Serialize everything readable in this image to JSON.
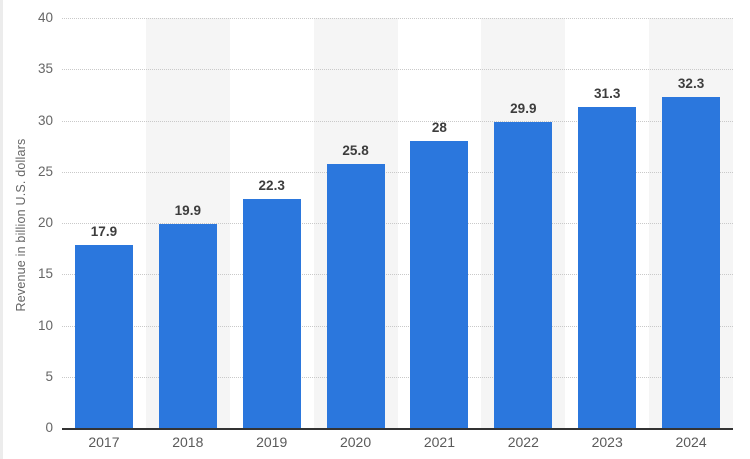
{
  "chart_data": {
    "type": "bar",
    "categories": [
      "2017",
      "2018",
      "2019",
      "2020",
      "2021",
      "2022",
      "2023",
      "2024"
    ],
    "values": [
      17.9,
      19.9,
      22.3,
      25.8,
      28,
      29.9,
      31.3,
      32.3
    ],
    "value_labels": [
      "17.9",
      "19.9",
      "22.3",
      "25.8",
      "28",
      "29.9",
      "31.3",
      "32.3"
    ],
    "title": "",
    "xlabel": "",
    "ylabel": "Revenue in billion U.S. dollars",
    "ylim": [
      0,
      40
    ],
    "ytick_step": 5,
    "ytick_labels": [
      "0",
      "5",
      "10",
      "15",
      "20",
      "25",
      "30",
      "35",
      "40"
    ],
    "grid": "horizontal dotted lines every 5 units",
    "legend": "none",
    "bar_color": "#2b77dd",
    "stripe_color": "#f5f5f5",
    "gridline_color": "#c9c9c9",
    "striped_columns_note": "every second category column (2018, 2020, 2022, 2024) has light gray background stripe"
  }
}
